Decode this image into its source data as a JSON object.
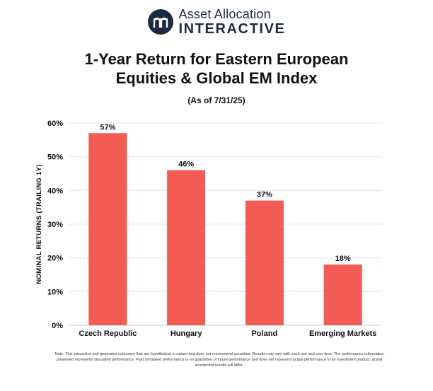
{
  "brand": {
    "name_line1": "Asset Allocation",
    "name_line2": "INTERACTIVE",
    "logo_icon": "stacked-arches-logo",
    "color": "#1c2a44"
  },
  "chart_data": {
    "type": "bar",
    "title_line1": "1-Year Return for Eastern European",
    "title_line2": "Equities & Global EM Index",
    "subtitle": "(As of 7/31/25)",
    "xlabel": "",
    "ylabel": "NOMINAL RETURNS (TRAILING 1Y)",
    "categories": [
      "Czech Republic",
      "Hungary",
      "Poland",
      "Emerging Markets"
    ],
    "values": [
      57,
      46,
      37,
      18
    ],
    "data_labels": [
      "57%",
      "46%",
      "37%",
      "18%"
    ],
    "ylim": [
      0,
      60
    ],
    "yticks": [
      0,
      10,
      20,
      30,
      40,
      50,
      60
    ],
    "ytick_labels": [
      "0%",
      "10%",
      "20%",
      "30%",
      "40%",
      "50%",
      "60%"
    ],
    "grid": true,
    "bar_color": "#f25c54"
  },
  "footnote": "Note: This interactive tool generates outcomes that are hypothetical in nature and does not recommend securities. Results may vary with each use and over time. The performance information presented represents simulated performance. Past simulated performance is no guarantee of future performance and does not represent actual performance of an investment product; actual investment results will differ."
}
